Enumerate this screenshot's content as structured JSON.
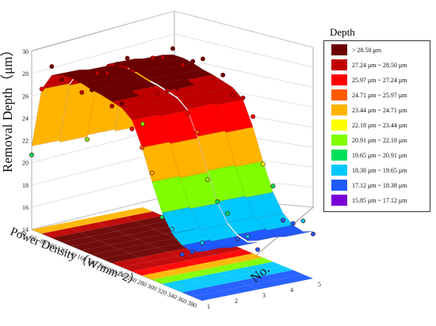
{
  "chart_data": {
    "type": "surface3d",
    "title": "",
    "zlabel": "Removal Depth（μm）",
    "xlabel": "Power Density（W/mm^2）",
    "ylabel": "No.",
    "z_ticks": [
      "14",
      "16",
      "18",
      "20",
      "22",
      "24",
      "26",
      "28",
      "30"
    ],
    "z_range": [
      14,
      30
    ],
    "x_ticks": [
      "40",
      "60",
      "80",
      "100",
      "120",
      "140",
      "160",
      "180",
      "200",
      "220",
      "240",
      "260",
      "280",
      "300",
      "320",
      "340",
      "360",
      "380"
    ],
    "x_range": [
      40,
      380
    ],
    "y_ticks": [
      "1",
      "2",
      "3",
      "4",
      "5"
    ],
    "y_range": [
      1,
      5
    ],
    "legend": {
      "title": "Depth",
      "placement": "right",
      "entries": [
        {
          "label": "> 28.50 μm",
          "color": "#6b0000"
        },
        {
          "label": "27.24 μm ~ 28.50 μm",
          "color": "#c00000"
        },
        {
          "label": "25.97 μm ~ 27.24 μm",
          "color": "#ff0000"
        },
        {
          "label": "24.71 μm ~ 25.97 μm",
          "color": "#ff5a00"
        },
        {
          "label": "23.44 μm ~ 24.71 μm",
          "color": "#ffb400"
        },
        {
          "label": "22.18 μm ~ 23.44 μm",
          "color": "#ffff00"
        },
        {
          "label": "20.91 μm ~ 22.18 μm",
          "color": "#7fff00"
        },
        {
          "label": "19.65 μm ~ 20.91 μm",
          "color": "#00e05a"
        },
        {
          "label": "18.38 μm ~ 19.65 μm",
          "color": "#00c8ff"
        },
        {
          "label": "17.12 μm ~ 18.38 μm",
          "color": "#1e5aff"
        },
        {
          "label": "15.85 μm ~ 17.12 μm",
          "color": "#7a00d8"
        }
      ]
    },
    "profile": {
      "x": [
        40,
        60,
        80,
        100,
        120,
        140,
        160,
        180,
        200,
        220,
        240,
        260,
        280,
        300,
        320,
        340,
        360,
        380
      ],
      "depth": [
        21.5,
        27.0,
        28.6,
        29.0,
        29.1,
        29.0,
        28.8,
        28.7,
        28.5,
        28.3,
        27.6,
        25.5,
        22.8,
        20.4,
        18.9,
        18.2,
        18.0,
        18.4
      ]
    }
  }
}
